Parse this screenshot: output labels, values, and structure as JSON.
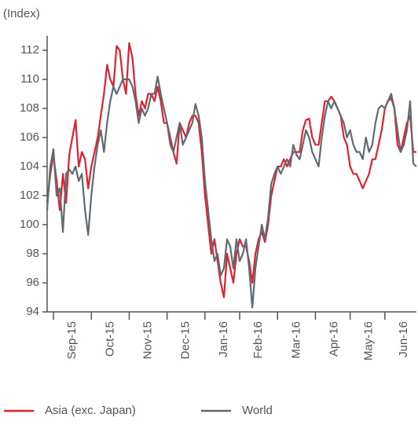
{
  "chart_data": {
    "type": "line",
    "y_label": "(Index)",
    "categories": [
      null,
      null,
      null,
      null,
      null,
      null,
      null,
      null,
      "Sep-15",
      null,
      null,
      null,
      null,
      null,
      null,
      null,
      null,
      null,
      null,
      null,
      "Oct-15",
      null,
      null,
      null,
      null,
      null,
      null,
      null,
      null,
      null,
      null,
      null,
      "Nov-15",
      null,
      null,
      null,
      null,
      null,
      null,
      null,
      null,
      null,
      null,
      null,
      "Dec-15",
      null,
      null,
      null,
      null,
      null,
      null,
      null,
      null,
      null,
      null,
      null,
      "Jan-16",
      null,
      null,
      null,
      null,
      null,
      null,
      null,
      null,
      null,
      null,
      "Feb-16",
      null,
      null,
      null,
      null,
      null,
      null,
      null,
      null,
      null,
      null,
      null,
      "Mar-16",
      null,
      null,
      null,
      null,
      null,
      null,
      null,
      null,
      null,
      null,
      null,
      "Apr-16",
      null,
      null,
      null,
      null,
      null,
      null,
      null,
      null,
      null,
      null,
      "May-16",
      null,
      null,
      null,
      null,
      null,
      null,
      null,
      null,
      null,
      null,
      "Jun-16",
      null,
      null,
      null,
      null
    ],
    "series": [
      {
        "name": "Asia (exc. Japan)",
        "color": "#e5202e",
        "values": [
          101.5,
          103.5,
          104.8,
          103,
          101,
          103.5,
          101.5,
          104.8,
          106,
          107.2,
          104,
          105,
          104.5,
          102.5,
          104,
          105,
          106,
          107.5,
          109,
          111,
          110,
          109.5,
          112.3,
          112,
          110,
          109,
          112.5,
          111.5,
          109,
          107.5,
          108.5,
          108,
          109,
          109,
          108.5,
          109.5,
          108.5,
          107,
          107,
          106,
          105,
          104.2,
          107,
          106.5,
          106,
          107,
          107.5,
          107.5,
          107,
          105,
          102,
          100,
          98,
          99,
          97.5,
          96,
          95,
          98,
          97,
          96,
          98,
          99,
          98.5,
          98.5,
          97.5,
          96,
          98,
          99,
          99.5,
          98.8,
          100,
          102,
          103,
          104,
          104,
          104.5,
          104,
          104.5,
          105,
          105,
          105,
          106.5,
          107.2,
          107.3,
          106,
          105.5,
          105.5,
          107,
          108.5,
          108.5,
          108.8,
          108.5,
          108,
          107.5,
          106,
          105.5,
          104,
          103.5,
          103.5,
          103,
          102.5,
          103,
          103.5,
          104.5,
          104.5,
          105.5,
          106.5,
          108,
          108.5,
          108.7,
          108,
          105.5,
          105,
          106,
          107,
          107.5,
          105,
          105
        ]
      },
      {
        "name": "World",
        "color": "#5f6a72",
        "values": [
          101,
          104,
          105.2,
          102,
          102.5,
          99.5,
          103.5,
          103.8,
          103.5,
          104,
          103,
          103.5,
          101,
          99.3,
          102,
          104,
          105.5,
          106.5,
          105,
          107,
          108.5,
          109.5,
          109,
          109.5,
          110,
          110,
          110,
          109.5,
          108.5,
          107,
          108,
          107.5,
          108,
          109,
          109,
          110.2,
          109,
          108,
          107,
          105.5,
          105,
          106,
          107,
          105.5,
          106,
          106.5,
          107,
          108.3,
          107.5,
          106,
          103,
          101,
          99,
          97.5,
          98,
          96.5,
          97,
          99,
          98.5,
          97,
          99,
          97.5,
          98,
          99,
          97,
          94.3,
          97,
          98.5,
          100,
          99,
          100.5,
          102.8,
          103.5,
          104,
          103.5,
          104,
          104.5,
          104,
          105.5,
          104.8,
          104.5,
          105.5,
          106.5,
          106,
          105,
          104.5,
          104,
          106,
          107.5,
          108.5,
          108,
          108.5,
          108,
          107.5,
          107,
          106,
          106.5,
          105.5,
          105,
          105,
          104.5,
          106,
          105,
          105.5,
          107,
          108,
          108.2,
          108,
          108.5,
          109,
          108,
          106.5,
          105,
          105.5,
          106.5,
          108.5,
          104.2,
          104
        ]
      }
    ],
    "ylim": [
      94,
      113
    ],
    "yticks": [
      94,
      96,
      98,
      100,
      102,
      104,
      106,
      108,
      110,
      112
    ]
  }
}
